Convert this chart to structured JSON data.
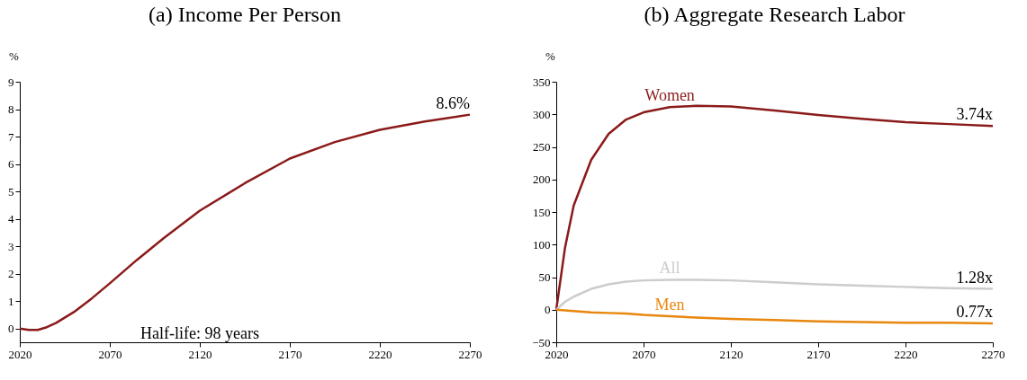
{
  "chart_data": [
    {
      "type": "line",
      "title": "(a) Income Per Person",
      "ylabel": "%",
      "x": [
        2020,
        2025,
        2030,
        2035,
        2040,
        2050,
        2060,
        2070,
        2085,
        2100,
        2120,
        2145,
        2170,
        2195,
        2220,
        2245,
        2270
      ],
      "series": [
        {
          "color": "#8b1a1a",
          "values": [
            0,
            -0.05,
            -0.05,
            0.05,
            0.2,
            0.6,
            1.1,
            1.65,
            2.5,
            3.3,
            4.3,
            5.3,
            6.2,
            6.8,
            7.25,
            7.55,
            7.8
          ]
        }
      ],
      "xlim": [
        2020,
        2270
      ],
      "xticks": [
        2020,
        2070,
        2120,
        2170,
        2220,
        2270
      ],
      "ylim": [
        -0.5,
        9
      ],
      "yticks": [
        0,
        1,
        2,
        3,
        4,
        5,
        6,
        7,
        8,
        9
      ],
      "grid": false,
      "legend": false,
      "annotations": [
        "8.6%",
        "Half-life: 98 years"
      ]
    },
    {
      "type": "line",
      "title": "(b) Aggregate Research Labor",
      "ylabel": "%",
      "x": [
        2020,
        2025,
        2030,
        2040,
        2050,
        2060,
        2070,
        2085,
        2100,
        2120,
        2145,
        2170,
        2195,
        2220,
        2245,
        2270
      ],
      "series": [
        {
          "name": "Women",
          "color": "#8b1a1a",
          "values": [
            0,
            95,
            160,
            230,
            270,
            292,
            303,
            311,
            313,
            312,
            306,
            299,
            293,
            288,
            285,
            282
          ]
        },
        {
          "name": "All",
          "color": "#cccccc",
          "values": [
            0,
            12,
            20,
            32,
            39,
            43,
            45,
            46,
            46,
            45,
            42,
            39,
            37,
            35,
            33,
            32
          ]
        },
        {
          "name": "Men",
          "color": "#e8870e",
          "values": [
            0,
            -1,
            -2,
            -4,
            -5,
            -6,
            -8,
            -10,
            -12,
            -14,
            -16,
            -18,
            -19,
            -20,
            -20,
            -21
          ]
        }
      ],
      "xlim": [
        2020,
        2270
      ],
      "xticks": [
        2020,
        2070,
        2120,
        2170,
        2220,
        2270
      ],
      "ylim": [
        -50,
        350
      ],
      "yticks": [
        -50,
        0,
        50,
        100,
        150,
        200,
        250,
        300,
        350
      ],
      "grid": false,
      "legend": false,
      "annotations": [
        "3.74x",
        "1.28x",
        "0.77x"
      ]
    }
  ]
}
